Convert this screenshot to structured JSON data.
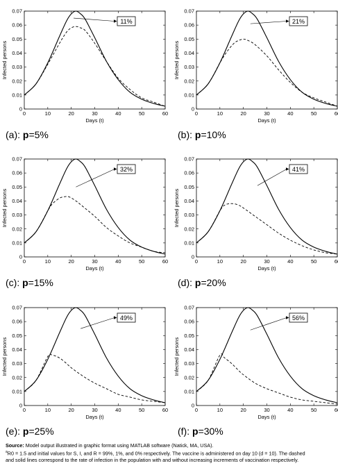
{
  "chart_data": [
    {
      "type": "line",
      "caption_prefix": "(a): ",
      "caption_p": "p",
      "caption_suffix": "=5%",
      "xlabel": "Days (t)",
      "ylabel": "Infected persons",
      "xlim": [
        0,
        60
      ],
      "ylim": [
        0,
        0.07
      ],
      "xticks": [
        0,
        10,
        20,
        30,
        40,
        50,
        60
      ],
      "yticks": [
        0,
        0.01,
        0.02,
        0.03,
        0.04,
        0.05,
        0.06,
        0.07
      ],
      "annotation": "11%",
      "annotation_target": [
        21,
        0.065
      ],
      "series": [
        {
          "style": "solid",
          "x": [
            0,
            5,
            10,
            15,
            18,
            20,
            22,
            24,
            26,
            30,
            35,
            40,
            45,
            50,
            55,
            60
          ],
          "y": [
            0.01,
            0.018,
            0.033,
            0.052,
            0.063,
            0.068,
            0.07,
            0.068,
            0.064,
            0.051,
            0.034,
            0.021,
            0.012,
            0.007,
            0.004,
            0.002
          ]
        },
        {
          "style": "dashed",
          "x": [
            0,
            5,
            10,
            15,
            18,
            20,
            22,
            24,
            26,
            30,
            35,
            40,
            45,
            50,
            55,
            60
          ],
          "y": [
            0.01,
            0.018,
            0.032,
            0.047,
            0.055,
            0.058,
            0.059,
            0.058,
            0.056,
            0.047,
            0.034,
            0.022,
            0.014,
            0.008,
            0.005,
            0.002
          ]
        }
      ]
    },
    {
      "type": "line",
      "caption_prefix": "(b): ",
      "caption_p": "p",
      "caption_suffix": "=10%",
      "xlabel": "Days (t)",
      "ylabel": "Infected persons",
      "xlim": [
        0,
        60
      ],
      "ylim": [
        0,
        0.07
      ],
      "xticks": [
        0,
        10,
        20,
        30,
        40,
        50,
        60
      ],
      "yticks": [
        0,
        0.01,
        0.02,
        0.03,
        0.04,
        0.05,
        0.06,
        0.07
      ],
      "annotation": "21%",
      "annotation_target": [
        23,
        0.061
      ],
      "series": [
        {
          "style": "solid",
          "x": [
            0,
            5,
            10,
            15,
            18,
            20,
            22,
            24,
            26,
            30,
            35,
            40,
            45,
            50,
            55,
            60
          ],
          "y": [
            0.01,
            0.018,
            0.033,
            0.052,
            0.063,
            0.068,
            0.07,
            0.068,
            0.064,
            0.051,
            0.034,
            0.021,
            0.012,
            0.007,
            0.004,
            0.002
          ]
        },
        {
          "style": "dashed",
          "x": [
            0,
            5,
            10,
            13,
            16,
            18,
            20,
            22,
            25,
            30,
            35,
            40,
            45,
            50,
            55,
            60
          ],
          "y": [
            0.01,
            0.018,
            0.033,
            0.041,
            0.047,
            0.049,
            0.05,
            0.049,
            0.046,
            0.038,
            0.028,
            0.019,
            0.012,
            0.008,
            0.005,
            0.002
          ]
        }
      ]
    },
    {
      "type": "line",
      "caption_prefix": "(c): ",
      "caption_p": "p",
      "caption_suffix": "=15%",
      "xlabel": "Days (t)",
      "ylabel": "Infected persons",
      "xlim": [
        0,
        60
      ],
      "ylim": [
        0,
        0.07
      ],
      "xticks": [
        0,
        10,
        20,
        30,
        40,
        50,
        60
      ],
      "yticks": [
        0,
        0.01,
        0.02,
        0.03,
        0.04,
        0.05,
        0.06,
        0.07
      ],
      "annotation": "32%",
      "annotation_target": [
        22,
        0.05
      ],
      "series": [
        {
          "style": "solid",
          "x": [
            0,
            5,
            10,
            15,
            18,
            20,
            22,
            24,
            26,
            30,
            35,
            40,
            45,
            50,
            55,
            60
          ],
          "y": [
            0.01,
            0.018,
            0.033,
            0.052,
            0.063,
            0.068,
            0.07,
            0.068,
            0.064,
            0.051,
            0.034,
            0.021,
            0.012,
            0.007,
            0.004,
            0.002
          ]
        },
        {
          "style": "dashed",
          "x": [
            0,
            5,
            10,
            12,
            15,
            17,
            19,
            22,
            25,
            30,
            35,
            40,
            45,
            50,
            55,
            60
          ],
          "y": [
            0.01,
            0.018,
            0.033,
            0.038,
            0.042,
            0.043,
            0.043,
            0.04,
            0.036,
            0.029,
            0.021,
            0.015,
            0.01,
            0.007,
            0.004,
            0.003
          ]
        }
      ]
    },
    {
      "type": "line",
      "caption_prefix": "(d): ",
      "caption_p": "p",
      "caption_suffix": "=20%",
      "xlabel": "Days (t)",
      "ylabel": "Infected persons",
      "xlim": [
        0,
        60
      ],
      "ylim": [
        0,
        0.07
      ],
      "xticks": [
        0,
        10,
        20,
        30,
        40,
        50,
        60
      ],
      "yticks": [
        0,
        0.01,
        0.02,
        0.03,
        0.04,
        0.05,
        0.06,
        0.07
      ],
      "annotation": "41%",
      "annotation_target": [
        26,
        0.051
      ],
      "series": [
        {
          "style": "solid",
          "x": [
            0,
            5,
            10,
            15,
            18,
            20,
            22,
            24,
            26,
            30,
            35,
            40,
            45,
            50,
            55,
            60
          ],
          "y": [
            0.01,
            0.018,
            0.033,
            0.052,
            0.063,
            0.068,
            0.07,
            0.068,
            0.064,
            0.051,
            0.034,
            0.021,
            0.012,
            0.007,
            0.004,
            0.002
          ]
        },
        {
          "style": "dashed",
          "x": [
            0,
            5,
            10,
            12,
            14,
            16,
            18,
            20,
            25,
            30,
            35,
            40,
            45,
            50,
            55,
            60
          ],
          "y": [
            0.01,
            0.018,
            0.033,
            0.037,
            0.038,
            0.038,
            0.037,
            0.035,
            0.029,
            0.023,
            0.017,
            0.012,
            0.008,
            0.005,
            0.003,
            0.002
          ]
        }
      ]
    },
    {
      "type": "line",
      "caption_prefix": "(e): ",
      "caption_p": "p",
      "caption_suffix": "=25%",
      "xlabel": "Days (t)",
      "ylabel": "Infected persons",
      "xlim": [
        0,
        60
      ],
      "ylim": [
        0,
        0.07
      ],
      "xticks": [
        0,
        10,
        20,
        30,
        40,
        50,
        60
      ],
      "yticks": [
        0,
        0.01,
        0.02,
        0.03,
        0.04,
        0.05,
        0.06,
        0.07
      ],
      "annotation": "49%",
      "annotation_target": [
        24,
        0.055
      ],
      "series": [
        {
          "style": "solid",
          "x": [
            0,
            5,
            10,
            15,
            18,
            20,
            22,
            24,
            26,
            30,
            35,
            40,
            45,
            50,
            55,
            60
          ],
          "y": [
            0.01,
            0.018,
            0.033,
            0.052,
            0.063,
            0.068,
            0.07,
            0.068,
            0.064,
            0.051,
            0.034,
            0.021,
            0.012,
            0.007,
            0.004,
            0.002
          ]
        },
        {
          "style": "dashed",
          "x": [
            0,
            5,
            10,
            12,
            15,
            18,
            20,
            25,
            30,
            35,
            40,
            45,
            50,
            55,
            60
          ],
          "y": [
            0.01,
            0.018,
            0.035,
            0.036,
            0.034,
            0.03,
            0.027,
            0.021,
            0.016,
            0.012,
            0.008,
            0.006,
            0.004,
            0.003,
            0.002
          ]
        }
      ]
    },
    {
      "type": "line",
      "caption_prefix": "(f): ",
      "caption_p": "p",
      "caption_suffix": "=30%",
      "xlabel": "Days (t)",
      "ylabel": "Infected persons",
      "xlim": [
        0,
        60
      ],
      "ylim": [
        0,
        0.07
      ],
      "xticks": [
        0,
        10,
        20,
        30,
        40,
        50,
        60
      ],
      "yticks": [
        0,
        0.01,
        0.02,
        0.03,
        0.04,
        0.05,
        0.06,
        0.07
      ],
      "annotation": "56%",
      "annotation_target": [
        23,
        0.054
      ],
      "series": [
        {
          "style": "solid",
          "x": [
            0,
            5,
            10,
            15,
            18,
            20,
            22,
            24,
            26,
            30,
            35,
            40,
            45,
            50,
            55,
            60
          ],
          "y": [
            0.01,
            0.018,
            0.033,
            0.052,
            0.063,
            0.068,
            0.07,
            0.068,
            0.064,
            0.051,
            0.034,
            0.021,
            0.012,
            0.007,
            0.004,
            0.002
          ]
        },
        {
          "style": "dashed",
          "x": [
            0,
            5,
            10,
            12,
            15,
            18,
            20,
            25,
            30,
            35,
            40,
            45,
            50,
            55,
            60
          ],
          "y": [
            0.01,
            0.018,
            0.036,
            0.034,
            0.03,
            0.025,
            0.022,
            0.016,
            0.012,
            0.009,
            0.006,
            0.004,
            0.003,
            0.002,
            0.001
          ]
        }
      ]
    }
  ],
  "notes": {
    "source_label": "Source:",
    "source_text": " Model output illustrated in graphic format using MATLAB software (Natick, MA, USA).",
    "note_marker": "a",
    "note_line1": "R0 = 1.5 and initial values for S, I, and R = 99%, 1%, and 0% respectively. The vaccine is administered on day 10 (d = 10). The dashed",
    "note_line2": "and solid lines correspond to the rate of infection in the population with and without increasing increments of vaccination respectively."
  }
}
